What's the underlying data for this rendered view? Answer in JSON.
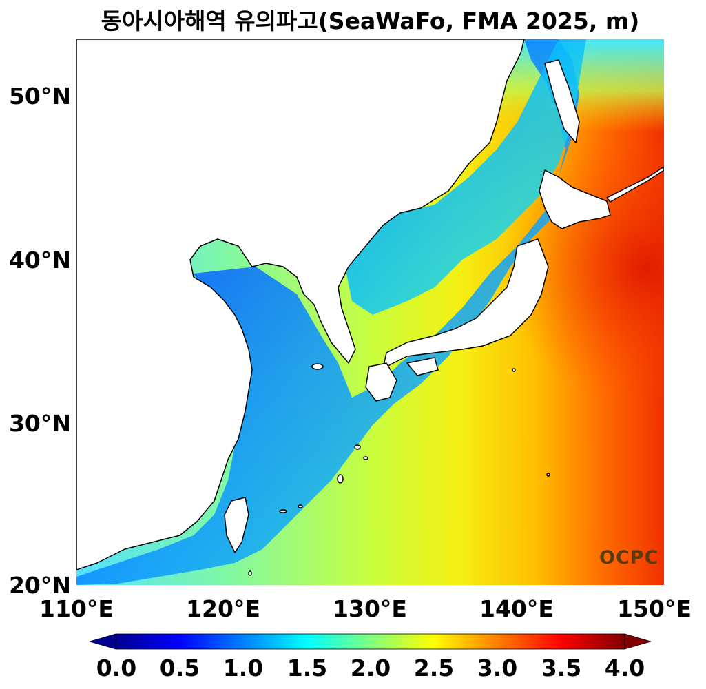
{
  "title": "동아시아해역 유의파고(SeaWaFo, FMA 2025, m)",
  "axes": {
    "y_ticks": [
      "50°N",
      "40°N",
      "30°N",
      "20°N"
    ],
    "x_ticks": [
      "110°E",
      "120°E",
      "130°E",
      "140°E",
      "150°E"
    ],
    "lon_range": [
      110,
      150
    ],
    "lat_range": [
      20,
      53.5
    ]
  },
  "logo_text": "OCPC",
  "colorbar": {
    "ticks": [
      "0.0",
      "0.5",
      "1.0",
      "1.5",
      "2.0",
      "2.5",
      "3.0",
      "3.5",
      "4.0"
    ],
    "range": [
      0,
      4
    ],
    "colormap": "jet",
    "extend": "both"
  },
  "colors": {
    "land": "#ffffff",
    "coast": "#000000",
    "low": "#0000ff",
    "mid": "#00ffff",
    "high": "#ff0000"
  }
}
